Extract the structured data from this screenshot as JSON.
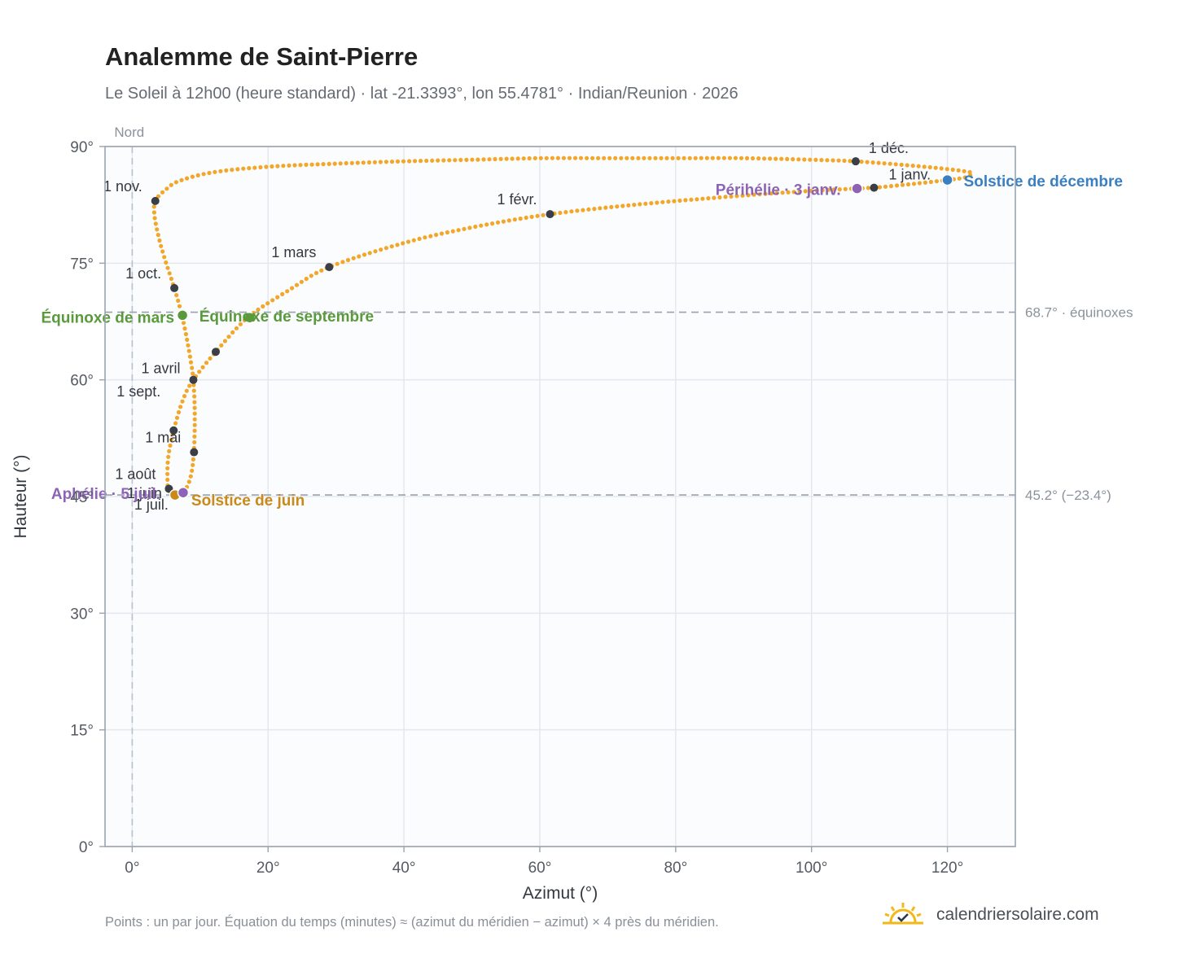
{
  "title": "Analemme de Saint-Pierre",
  "subtitle": "Le Soleil à 12h00 (heure standard) · lat -21.3393°, lon 55.4781° · Indian/Reunion · 2026",
  "footnote": "Points : un par jour. Équation du temps (minutes) ≈ (azimut du méridien − azimut) × 4 près du méridien.",
  "brand": {
    "name": "calendriersolaire.com",
    "icon": "sun-check-icon"
  },
  "colors": {
    "curve": "#f2a72b",
    "month_marker": "#3a3f47",
    "equinox": "#5a9a3c",
    "june_solstice": "#c98a1a",
    "december_solstice": "#3a7fc1",
    "apsis": "#8c63b5",
    "reference_line": "#9aa3ad",
    "north_line": "#b7c2cf",
    "plot_background": "#fafcfe",
    "grid": "#e4e8ee"
  },
  "chart_data": {
    "type": "scatter",
    "xlabel": "Azimut (°)",
    "ylabel": "Hauteur (°)",
    "xlim": [
      -4,
      130
    ],
    "ylim": [
      0,
      90
    ],
    "x_ticks": [
      0,
      20,
      40,
      60,
      80,
      100,
      120
    ],
    "x_tick_labels": [
      "0°",
      "20°",
      "40°",
      "60°",
      "80°",
      "100°",
      "120°"
    ],
    "y_ticks": [
      0,
      15,
      30,
      45,
      60,
      75,
      90
    ],
    "y_tick_labels": [
      "0°",
      "15°",
      "30°",
      "45°",
      "60°",
      "75°",
      "90°"
    ],
    "grid": true,
    "north_line": {
      "x": 0,
      "label": "Nord"
    },
    "reference_lines": [
      {
        "y": 68.7,
        "label": "68.7° · équinoxes"
      },
      {
        "y": 45.2,
        "label": "45.2° (−23.4°)"
      }
    ],
    "series_description_points": "one point per day",
    "curve_path": [
      [
        109.2,
        84.7
      ],
      [
        115.0,
        85.2
      ],
      [
        120.0,
        85.7
      ],
      [
        122.5,
        86.0
      ],
      [
        123.5,
        86.4
      ],
      [
        123.3,
        86.7
      ],
      [
        120.0,
        87.1
      ],
      [
        114.0,
        87.6
      ],
      [
        106.5,
        88.1
      ],
      [
        100.0,
        88.3
      ],
      [
        90.0,
        88.5
      ],
      [
        80.0,
        88.5
      ],
      [
        70.0,
        88.5
      ],
      [
        60.0,
        88.5
      ],
      [
        50.0,
        88.3
      ],
      [
        40.0,
        88.1
      ],
      [
        30.0,
        87.8
      ],
      [
        20.0,
        87.4
      ],
      [
        12.0,
        86.7
      ],
      [
        7.0,
        85.6
      ],
      [
        5.0,
        84.5
      ],
      [
        3.4,
        83.0
      ],
      [
        3.3,
        81.0
      ],
      [
        4.0,
        78.0
      ],
      [
        5.0,
        75.0
      ],
      [
        6.2,
        71.8
      ],
      [
        7.2,
        68.7
      ],
      [
        8.0,
        65.5
      ],
      [
        8.6,
        62.5
      ],
      [
        9.0,
        60.0
      ],
      [
        9.2,
        56.0
      ],
      [
        9.1,
        51.0
      ],
      [
        8.6,
        47.5
      ],
      [
        7.5,
        45.5
      ],
      [
        6.3,
        45.2
      ],
      [
        5.4,
        45.8
      ],
      [
        5.2,
        47.0
      ],
      [
        5.3,
        50.0
      ],
      [
        6.1,
        53.5
      ],
      [
        7.5,
        57.5
      ],
      [
        9.0,
        60.0
      ],
      [
        12.3,
        63.6
      ],
      [
        17.0,
        68.0
      ],
      [
        23.0,
        71.5
      ],
      [
        29.0,
        74.5
      ],
      [
        40.0,
        77.6
      ],
      [
        50.0,
        79.6
      ],
      [
        61.5,
        81.3
      ],
      [
        75.0,
        82.6
      ],
      [
        90.0,
        83.7
      ],
      [
        100.0,
        84.3
      ],
      [
        106.7,
        84.6
      ],
      [
        109.2,
        84.7
      ]
    ],
    "month_markers": [
      {
        "label": "1 janv.",
        "x": 109.2,
        "y": 84.7
      },
      {
        "label": "1 févr.",
        "x": 61.5,
        "y": 81.3
      },
      {
        "label": "1 mars",
        "x": 29.0,
        "y": 74.5
      },
      {
        "label": "1 avril",
        "x": 9.0,
        "y": 60.0
      },
      {
        "label": "1 mai",
        "x": 9.1,
        "y": 50.7
      },
      {
        "label": "1 juin",
        "x": 6.3,
        "y": 45.2
      },
      {
        "label": "1 juil.",
        "x": 6.3,
        "y": 45.2
      },
      {
        "label": "1 août",
        "x": 5.4,
        "y": 46.0
      },
      {
        "label": "1 sept.",
        "x": 6.1,
        "y": 53.5
      },
      {
        "label": "1 oct.",
        "x": 6.2,
        "y": 71.8
      },
      {
        "label": "1 nov.",
        "x": 3.4,
        "y": 83.0
      },
      {
        "label": "1 déc.",
        "x": 106.5,
        "y": 88.1
      }
    ],
    "unlabeled_markers": [
      {
        "x": 12.3,
        "y": 63.6
      }
    ],
    "events": [
      {
        "label": "Équinoxe de mars",
        "x": 7.4,
        "y": 68.3,
        "kind": "equinox"
      },
      {
        "label": "Équinoxe de septembre",
        "x": 17.3,
        "y": 68.0,
        "kind": "equinox"
      },
      {
        "label": "Solstice de juin",
        "x": 6.3,
        "y": 45.2,
        "kind": "june_solstice"
      },
      {
        "label": "Solstice de décembre",
        "x": 120.0,
        "y": 85.7,
        "kind": "december_solstice"
      },
      {
        "label": "Aphélie · 5 juil.",
        "x": 7.5,
        "y": 45.5,
        "kind": "apsis"
      },
      {
        "label": "Périhélie · 3 janv.",
        "x": 106.7,
        "y": 84.6,
        "kind": "apsis"
      }
    ]
  }
}
